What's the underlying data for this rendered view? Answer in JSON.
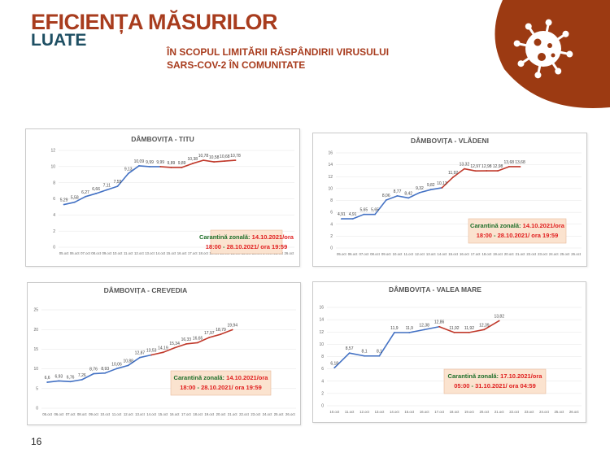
{
  "header": {
    "title_line1": "EFICIENȚA MĂSURILOR",
    "title_line2": "LUATE",
    "subtitle_line1": "ÎN SCOPUL LIMITĂRII RĂSPÂNDIRII VIRUSULUI",
    "subtitle_line2": "SARS-COV-2 ÎN COMUNITATE"
  },
  "page_number": "16",
  "colors": {
    "brand_red": "#a83c1e",
    "brand_teal": "#1e4f63",
    "line_blue": "#4472c4",
    "line_red": "#c0392b",
    "note_bg": "#fbe3cf",
    "note_green": "#1f6f2a",
    "note_red": "#e02020"
  },
  "icons": {
    "badge": "virus-icon"
  },
  "chart_data": [
    {
      "type": "line",
      "title": "DÂMBOVIȚA - TITU",
      "ylim": [
        0,
        12
      ],
      "yticks": [
        0,
        2,
        4,
        6,
        8,
        10,
        12
      ],
      "categories": [
        "05.oct",
        "06.oct",
        "07.oct",
        "08.oct",
        "09.oct",
        "10.oct",
        "11.oct",
        "12.oct",
        "13.oct",
        "14.oct",
        "15.oct",
        "16.oct",
        "17.oct",
        "18.oct",
        "19.oct",
        "20.oct",
        "21.oct",
        "22.oct",
        "23.oct",
        "24.oct",
        "25.oct",
        "26.oct"
      ],
      "values": [
        5.29,
        5.58,
        6.27,
        6.66,
        7.11,
        7.55,
        9.13,
        10.09,
        9.99,
        9.99,
        9.89,
        9.89,
        10.38,
        10.78,
        10.58,
        10.68,
        10.78
      ],
      "labels": [
        "5,29",
        "5,58",
        "6,27",
        "6,66",
        "7,11",
        "7,55",
        "9,13",
        "10,09",
        "9,99",
        "9,99",
        "9,89",
        "9,89",
        "10,38",
        "10,78",
        "10,58",
        "10,68",
        "10,78"
      ],
      "highlight_start": 9,
      "note": {
        "label": "Carantină zonală:",
        "start": "14.10.2021/ora",
        "end_time": "18:00",
        "sep": " - ",
        "end": "28.10.2021/ ora 19:59"
      }
    },
    {
      "type": "line",
      "title": "DÂMBOVIȚA - VLĂDENI",
      "ylim": [
        0,
        16
      ],
      "yticks": [
        0,
        2,
        4,
        6,
        8,
        10,
        12,
        14,
        16
      ],
      "categories": [
        "05.oct",
        "06.oct",
        "07.oct",
        "08.oct",
        "09.oct",
        "10.oct",
        "11.oct",
        "12.oct",
        "13.oct",
        "14.oct",
        "15.oct",
        "16.oct",
        "17.oct",
        "18.oct",
        "19.oct",
        "20.oct",
        "21.oct",
        "22.oct",
        "23.oct",
        "24.oct",
        "25.oct",
        "26.oct"
      ],
      "values": [
        4.91,
        4.91,
        5.65,
        5.65,
        8.06,
        8.77,
        8.42,
        9.32,
        9.82,
        10.13,
        11.92,
        13.32,
        12.97,
        12.98,
        12.98,
        13.68,
        13.68
      ],
      "labels": [
        "4,91",
        "4,91",
        "5,65",
        "5,65",
        "8,06",
        "8,77",
        "8,42",
        "9,32",
        "9,82",
        "10,13",
        "11,92",
        "13,32",
        "12,97",
        "12,98",
        "12,98",
        "13,68",
        "13,68"
      ],
      "highlight_start": 9,
      "note": {
        "label": "Carantină zonală:",
        "start": "14.10.2021/ora",
        "end_time": "18:00",
        "sep": " - ",
        "end": "28.10.2021/ ora 19:59"
      }
    },
    {
      "type": "line",
      "title": "DÂMBOVIȚA - CREVEDIA",
      "ylim": [
        0,
        25
      ],
      "yticks": [
        0,
        5,
        10,
        15,
        20,
        25
      ],
      "categories": [
        "05.oct",
        "06.oct",
        "07.oct",
        "08.oct",
        "09.oct",
        "10.oct",
        "11.oct",
        "12.oct",
        "13.oct",
        "14.oct",
        "15.oct",
        "16.oct",
        "17.oct",
        "18.oct",
        "19.oct",
        "20.oct",
        "21.oct",
        "22.oct",
        "23.oct",
        "24.oct",
        "25.oct",
        "26.oct"
      ],
      "values": [
        6.6,
        6.93,
        6.76,
        7.26,
        8.76,
        8.93,
        10.06,
        10.88,
        12.87,
        13.53,
        14.19,
        15.34,
        16.33,
        16.65,
        17.97,
        18.79,
        19.94
      ],
      "labels": [
        "6,6",
        "6,93",
        "6,76",
        "7,26",
        "8,76",
        "8,93",
        "10,06",
        "10,88",
        "12,87",
        "13,53",
        "14,19",
        "15,34",
        "16,33",
        "16,65",
        "17,97",
        "18,79",
        "19,94"
      ],
      "highlight_start": 9,
      "note": {
        "label": "Carantină zonală:",
        "start": "14.10.2021/ora",
        "end_time": "18:00",
        "sep": " - ",
        "end": "28.10.2021/ ora 19:59"
      }
    },
    {
      "type": "line",
      "title": "DÂMBOVIȚA - VALEA MARE",
      "ylim": [
        0,
        16
      ],
      "yticks": [
        0,
        2,
        4,
        6,
        8,
        10,
        12,
        14,
        16
      ],
      "categories": [
        "10.oct",
        "11.oct",
        "12.oct",
        "13.oct",
        "14.oct",
        "15.oct",
        "16.oct",
        "17.oct",
        "18.oct",
        "19.oct",
        "20.oct",
        "21.oct",
        "22.oct",
        "23.oct",
        "24.oct",
        "25.oct",
        "26.oct"
      ],
      "values": [
        6.18,
        8.57,
        8.1,
        8.1,
        11.9,
        11.9,
        12.38,
        12.86,
        11.92,
        11.92,
        12.39,
        13.82
      ],
      "labels": [
        "6,18",
        "8,57",
        "8,1",
        "8,1",
        "11,9",
        "11,9",
        "12,38",
        "12,86",
        "11,92",
        "11,92",
        "12,39",
        "13,82"
      ],
      "highlight_start": 7,
      "note": {
        "label": "Carantină zonală:",
        "start": "17.10.2021/ora",
        "end_time": "05:00",
        "sep": " - ",
        "end": "31.10.2021/ ora 04:59"
      }
    }
  ]
}
